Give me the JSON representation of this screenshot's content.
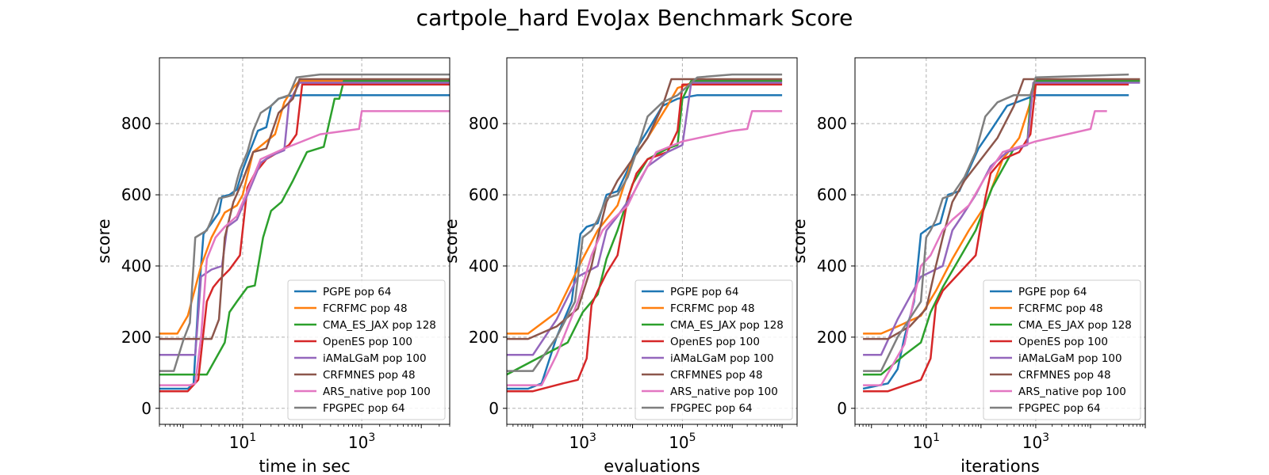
{
  "figure": {
    "title": "cartpole_hard EvoJax Benchmark Score",
    "colors": {
      "PGPE pop 64": "#1f77b4",
      "FCRFMC pop 48": "#ff7f0e",
      "CMA_ES_JAX pop 128": "#2ca02c",
      "OpenES pop 100": "#d62728",
      "iAMaLGaM pop 100": "#9467bd",
      "CRFMNES pop 48": "#8c564b",
      "ARS_native pop 100": "#e377c2",
      "FPGPEC pop 64": "#7f7f7f"
    }
  },
  "chart_data": [
    {
      "type": "line",
      "xscale": "log",
      "xlabel": "time in sec",
      "ylabel": "score",
      "xlim": [
        0.4,
        30000
      ],
      "ylim": [
        -45,
        985
      ],
      "xticks": [
        {
          "value": 10,
          "base": "10",
          "exp": "1"
        },
        {
          "value": 1000,
          "base": "10",
          "exp": "3"
        }
      ],
      "yticks": [
        0,
        200,
        400,
        600,
        800
      ],
      "grid": true,
      "legend_location": "lower right",
      "series": [
        {
          "name": "PGPE pop 64",
          "x": [
            0.4,
            1.2,
            1.5,
            1.8,
            2.2,
            3,
            4,
            4.5,
            6,
            8,
            10,
            13,
            18,
            25,
            30,
            40,
            60,
            100,
            30000
          ],
          "y": [
            55,
            55,
            70,
            300,
            490,
            520,
            550,
            595,
            600,
            615,
            670,
            720,
            780,
            790,
            850,
            870,
            878,
            880,
            880
          ]
        },
        {
          "name": "FCRFMC pop 48",
          "x": [
            0.4,
            0.8,
            1.2,
            2,
            3,
            5,
            8,
            10,
            15,
            25,
            35,
            50,
            70,
            90,
            30000
          ],
          "y": [
            210,
            210,
            260,
            400,
            480,
            550,
            570,
            600,
            720,
            750,
            770,
            860,
            900,
            920,
            920
          ]
        },
        {
          "name": "CMA_ES_JAX pop 128",
          "x": [
            0.4,
            2.5,
            5,
            6,
            8,
            12,
            16,
            22,
            30,
            45,
            70,
            120,
            230,
            350,
            420,
            500,
            30000
          ],
          "y": [
            95,
            95,
            185,
            270,
            300,
            340,
            345,
            480,
            555,
            580,
            640,
            720,
            735,
            870,
            870,
            920,
            920
          ]
        },
        {
          "name": "OpenES pop 100",
          "x": [
            0.4,
            1.2,
            1.8,
            2.5,
            3.2,
            4,
            6,
            9,
            12,
            16,
            25,
            40,
            60,
            80,
            100,
            30000
          ],
          "y": [
            48,
            48,
            80,
            300,
            340,
            360,
            390,
            430,
            620,
            660,
            700,
            720,
            740,
            770,
            910,
            910
          ]
        },
        {
          "name": "iAMaLGaM pop 100",
          "x": [
            0.4,
            1.6,
            2,
            3,
            4.5,
            5.5,
            8,
            12,
            20,
            30,
            50,
            60,
            70,
            90,
            30000
          ],
          "y": [
            150,
            150,
            370,
            390,
            400,
            510,
            530,
            600,
            690,
            710,
            725,
            860,
            880,
            915,
            915
          ]
        },
        {
          "name": "CRFMNES pop 48",
          "x": [
            0.4,
            1.5,
            2,
            3,
            4,
            5,
            7,
            10,
            15,
            25,
            40,
            70,
            90,
            30000
          ],
          "y": [
            195,
            195,
            195,
            195,
            250,
            480,
            580,
            640,
            720,
            730,
            830,
            870,
            925,
            925
          ]
        },
        {
          "name": "ARS_native pop 100",
          "x": [
            0.4,
            1.3,
            1.6,
            2,
            2.5,
            3.5,
            5,
            8,
            12,
            20,
            50,
            100,
            200,
            900,
            1000,
            30000
          ],
          "y": [
            65,
            65,
            70,
            200,
            420,
            480,
            510,
            540,
            610,
            700,
            730,
            750,
            770,
            785,
            835,
            835
          ]
        },
        {
          "name": "FPGPEC pop 64",
          "x": [
            0.4,
            0.7,
            1,
            1.3,
            1.6,
            2,
            2.5,
            3,
            4,
            5.5,
            7,
            8,
            9,
            12,
            15,
            20,
            30,
            40,
            60,
            80,
            200,
            30000
          ],
          "y": [
            105,
            105,
            190,
            240,
            480,
            490,
            500,
            530,
            590,
            595,
            600,
            640,
            670,
            720,
            780,
            830,
            850,
            870,
            880,
            930,
            938,
            938
          ]
        }
      ]
    },
    {
      "type": "line",
      "xscale": "log",
      "xlabel": "evaluations",
      "ylabel": "score",
      "xlim": [
        30,
        20000000
      ],
      "ylim": [
        -45,
        985
      ],
      "xticks": [
        {
          "value": 1000,
          "base": "10",
          "exp": "3"
        },
        {
          "value": 100000,
          "base": "10",
          "exp": "5"
        }
      ],
      "yticks": [
        0,
        200,
        400,
        600,
        800
      ],
      "grid": true,
      "legend_location": "lower right",
      "series": [
        {
          "name": "PGPE pop 64",
          "x": [
            30,
            80,
            150,
            300,
            600,
            900,
            1200,
            2000,
            3000,
            5000,
            8000,
            12000,
            20000,
            40000,
            80000,
            200000,
            10000000
          ],
          "y": [
            55,
            55,
            70,
            200,
            300,
            490,
            510,
            520,
            600,
            610,
            670,
            730,
            780,
            850,
            870,
            880,
            880
          ]
        },
        {
          "name": "FCRFMC pop 48",
          "x": [
            30,
            80,
            300,
            1000,
            2000,
            5000,
            10000,
            20000,
            50000,
            80000,
            200000,
            10000000
          ],
          "y": [
            210,
            210,
            270,
            420,
            500,
            570,
            700,
            760,
            850,
            900,
            920,
            920
          ]
        },
        {
          "name": "CMA_ES_JAX pop 128",
          "x": [
            30,
            500,
            1000,
            2000,
            3000,
            5000,
            10000,
            20000,
            50000,
            80000,
            100000,
            150000,
            10000000
          ],
          "y": [
            95,
            185,
            270,
            320,
            420,
            500,
            630,
            700,
            730,
            740,
            870,
            920,
            920
          ]
        },
        {
          "name": "OpenES pop 100",
          "x": [
            30,
            100,
            400,
            800,
            1200,
            1500,
            2000,
            3000,
            5000,
            8000,
            12000,
            20000,
            50000,
            80000,
            100000,
            10000000
          ],
          "y": [
            48,
            48,
            70,
            80,
            140,
            290,
            330,
            380,
            430,
            590,
            660,
            700,
            720,
            780,
            910,
            910
          ]
        },
        {
          "name": "iAMaLGaM pop 100",
          "x": [
            30,
            100,
            300,
            800,
            2000,
            3000,
            5000,
            10000,
            20000,
            50000,
            100000,
            150000,
            10000000
          ],
          "y": [
            150,
            150,
            250,
            370,
            400,
            500,
            540,
            600,
            680,
            720,
            740,
            915,
            915
          ]
        },
        {
          "name": "CRFMNES pop 48",
          "x": [
            30,
            80,
            300,
            800,
            1500,
            2000,
            3000,
            5000,
            10000,
            20000,
            40000,
            60000,
            100000,
            10000000
          ],
          "y": [
            195,
            195,
            230,
            280,
            400,
            480,
            580,
            640,
            700,
            760,
            850,
            925,
            925,
            925
          ]
        },
        {
          "name": "ARS_native pop 100",
          "x": [
            30,
            150,
            300,
            800,
            1500,
            2500,
            4000,
            8000,
            15000,
            30000,
            100000,
            1000000,
            2000000,
            2500000,
            10000000
          ],
          "y": [
            65,
            65,
            150,
            300,
            430,
            500,
            530,
            570,
            650,
            720,
            750,
            780,
            785,
            835,
            835
          ]
        },
        {
          "name": "FPGPEC pop 64",
          "x": [
            30,
            100,
            300,
            700,
            1000,
            1500,
            2000,
            3000,
            5000,
            8000,
            12000,
            20000,
            40000,
            80000,
            200000,
            1000000,
            10000000
          ],
          "y": [
            105,
            105,
            200,
            300,
            480,
            500,
            530,
            590,
            600,
            650,
            720,
            820,
            860,
            880,
            930,
            938,
            938
          ]
        }
      ]
    },
    {
      "type": "line",
      "xscale": "log",
      "xlabel": "iterations",
      "ylabel": "score",
      "xlim": [
        0.5,
        100000
      ],
      "ylim": [
        -45,
        985
      ],
      "xticks": [
        {
          "value": 10,
          "base": "10",
          "exp": "1"
        },
        {
          "value": 1000,
          "base": "10",
          "exp": "3"
        }
      ],
      "yticks": [
        0,
        200,
        400,
        600,
        800
      ],
      "grid": true,
      "legend_location": "lower right",
      "series": [
        {
          "name": "PGPE pop 64",
          "x": [
            0.7,
            2,
            3,
            4,
            6,
            8,
            12,
            18,
            25,
            40,
            60,
            90,
            150,
            300,
            1000,
            50000
          ],
          "y": [
            55,
            70,
            110,
            200,
            300,
            490,
            510,
            520,
            600,
            610,
            670,
            730,
            780,
            850,
            880,
            880
          ]
        },
        {
          "name": "FCRFMC pop 48",
          "x": [
            0.7,
            1.5,
            3,
            8,
            15,
            30,
            60,
            120,
            250,
            500,
            800,
            1000,
            80000
          ],
          "y": [
            210,
            210,
            230,
            260,
            330,
            420,
            500,
            570,
            700,
            760,
            860,
            915,
            920
          ]
        },
        {
          "name": "CMA_ES_JAX pop 128",
          "x": [
            0.7,
            1.5,
            4,
            8,
            12,
            20,
            40,
            80,
            160,
            400,
            700,
            800,
            1000,
            80000
          ],
          "y": [
            95,
            95,
            150,
            185,
            270,
            340,
            420,
            500,
            620,
            730,
            740,
            870,
            920,
            920
          ]
        },
        {
          "name": "OpenES pop 100",
          "x": [
            0.7,
            2,
            8,
            12,
            15,
            20,
            40,
            80,
            120,
            150,
            250,
            500,
            800,
            1000,
            50000
          ],
          "y": [
            48,
            48,
            80,
            140,
            290,
            330,
            380,
            430,
            590,
            660,
            700,
            720,
            770,
            910,
            910
          ]
        },
        {
          "name": "iAMaLGaM pop 100",
          "x": [
            0.7,
            1.5,
            3,
            8,
            20,
            30,
            45,
            80,
            150,
            300,
            700,
            900,
            1000,
            80000
          ],
          "y": [
            150,
            150,
            250,
            370,
            400,
            500,
            540,
            600,
            680,
            720,
            740,
            915,
            915,
            915
          ]
        },
        {
          "name": "CRFMNES pop 48",
          "x": [
            0.7,
            2,
            5,
            10,
            15,
            20,
            30,
            50,
            100,
            200,
            400,
            600,
            800,
            80000
          ],
          "y": [
            195,
            195,
            230,
            280,
            400,
            480,
            580,
            640,
            700,
            760,
            850,
            925,
            925,
            925
          ]
        },
        {
          "name": "ARS_native pop 100",
          "x": [
            0.7,
            1.5,
            4,
            8,
            12,
            20,
            30,
            60,
            120,
            250,
            1000,
            10000,
            12000,
            20000
          ],
          "y": [
            65,
            65,
            180,
            400,
            430,
            500,
            530,
            570,
            650,
            720,
            750,
            785,
            835,
            835
          ]
        },
        {
          "name": "FPGPEC pop 64",
          "x": [
            0.7,
            1.5,
            3,
            8,
            10,
            12,
            15,
            20,
            30,
            50,
            80,
            120,
            200,
            400,
            800,
            1000,
            50000
          ],
          "y": [
            105,
            105,
            200,
            300,
            480,
            500,
            530,
            590,
            600,
            650,
            720,
            820,
            860,
            880,
            880,
            930,
            938
          ]
        }
      ]
    }
  ]
}
